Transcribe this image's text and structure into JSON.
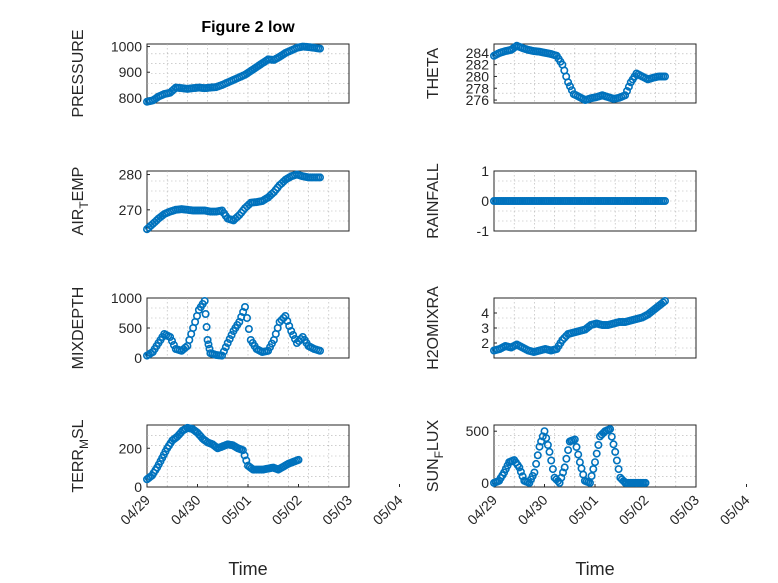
{
  "chart_data": [
    {
      "type": "scatter",
      "title": "Figure 2 low",
      "ylabel": "PRESSURE",
      "xlabel": "",
      "xlim": [
        0,
        3.0
      ],
      "ylim": [
        780,
        1010
      ],
      "yticks": [
        800,
        900,
        1000
      ],
      "xticks": [],
      "marker_color": "#0072BD",
      "x": [
        0.0,
        0.1,
        0.2,
        0.3,
        0.4,
        0.5,
        0.6,
        0.7,
        0.8,
        0.9,
        1.0,
        1.1,
        1.2,
        1.3,
        1.4,
        1.5,
        1.6,
        1.7,
        1.8,
        1.9,
        2.0,
        2.1,
        2.2,
        2.3,
        2.4,
        2.5,
        2.6,
        2.7,
        2.8,
        2.9,
        3.0
      ],
      "y": [
        785,
        790,
        805,
        815,
        820,
        840,
        838,
        835,
        838,
        840,
        838,
        840,
        842,
        850,
        860,
        870,
        880,
        890,
        905,
        920,
        935,
        950,
        948,
        960,
        975,
        985,
        995,
        1000,
        998,
        995,
        992
      ]
    },
    {
      "type": "scatter",
      "title": "",
      "ylabel": "THETA",
      "xlabel": "",
      "xlim": [
        0,
        3.0
      ],
      "ylim": [
        275.5,
        285.5
      ],
      "yticks": [
        276,
        278,
        280,
        282,
        284
      ],
      "xticks": [],
      "marker_color": "#0072BD",
      "x": [
        0.0,
        0.1,
        0.2,
        0.3,
        0.4,
        0.5,
        0.6,
        0.7,
        0.8,
        0.9,
        1.0,
        1.1,
        1.2,
        1.3,
        1.4,
        1.5,
        1.6,
        1.7,
        1.8,
        1.9,
        2.0,
        2.1,
        2.2,
        2.3,
        2.4,
        2.5,
        2.6,
        2.7,
        2.8,
        2.9,
        3.0
      ],
      "y": [
        283.5,
        284,
        284.3,
        284.5,
        285.2,
        284.8,
        284.5,
        284.3,
        284.2,
        284,
        283.8,
        283.5,
        282,
        279,
        277,
        276.5,
        276,
        276.3,
        276.5,
        276.8,
        276.5,
        276.2,
        276.4,
        276.8,
        279,
        280.5,
        280,
        279.5,
        279.8,
        280,
        280
      ]
    },
    {
      "type": "scatter",
      "title": "",
      "ylabel": "AIR_TEMP",
      "xlabel": "",
      "xlim": [
        0,
        3.0
      ],
      "ylim": [
        264,
        281
      ],
      "yticks": [
        270,
        280
      ],
      "xticks": [],
      "marker_color": "#0072BD",
      "x": [
        0.0,
        0.1,
        0.2,
        0.3,
        0.4,
        0.5,
        0.6,
        0.7,
        0.8,
        0.9,
        1.0,
        1.1,
        1.2,
        1.3,
        1.4,
        1.5,
        1.6,
        1.7,
        1.8,
        1.9,
        2.0,
        2.1,
        2.2,
        2.3,
        2.4,
        2.5,
        2.6,
        2.7,
        2.8,
        2.9,
        3.0
      ],
      "y": [
        264.5,
        266,
        267.5,
        268.8,
        269.5,
        270,
        270.2,
        270,
        269.8,
        269.8,
        269.8,
        269.5,
        269.5,
        269.8,
        267.5,
        267,
        268.5,
        270.5,
        272,
        272.2,
        272.5,
        273.5,
        275,
        277,
        278.5,
        279.5,
        280,
        279.5,
        279.2,
        279.2,
        279.2
      ]
    },
    {
      "type": "scatter",
      "title": "",
      "ylabel": "RAINFALL",
      "xlabel": "",
      "xlim": [
        0,
        3.0
      ],
      "ylim": [
        -1,
        1
      ],
      "yticks": [
        -1,
        0,
        1
      ],
      "xticks": [],
      "marker_color": "#0072BD",
      "x": [
        0.0,
        0.1,
        0.2,
        0.3,
        0.4,
        0.5,
        0.6,
        0.7,
        0.8,
        0.9,
        1.0,
        1.1,
        1.2,
        1.3,
        1.4,
        1.5,
        1.6,
        1.7,
        1.8,
        1.9,
        2.0,
        2.1,
        2.2,
        2.3,
        2.4,
        2.5,
        2.6,
        2.7,
        2.8,
        2.9,
        3.0
      ],
      "y": [
        0,
        0,
        0,
        0,
        0,
        0,
        0,
        0,
        0,
        0,
        0,
        0,
        0,
        0,
        0,
        0,
        0,
        0,
        0,
        0,
        0,
        0,
        0,
        0,
        0,
        0,
        0,
        0,
        0,
        0,
        0
      ]
    },
    {
      "type": "scatter",
      "title": "",
      "ylabel": "MIXDEPTH",
      "xlabel": "",
      "xlim": [
        0,
        3.0
      ],
      "ylim": [
        0,
        1000
      ],
      "yticks": [
        0,
        500,
        1000
      ],
      "xticks": [],
      "marker_color": "#0072BD",
      "x": [
        0.0,
        0.1,
        0.2,
        0.3,
        0.4,
        0.5,
        0.6,
        0.7,
        0.8,
        0.9,
        1.0,
        1.05,
        1.1,
        1.2,
        1.3,
        1.4,
        1.5,
        1.6,
        1.7,
        1.8,
        1.9,
        2.0,
        2.1,
        2.2,
        2.3,
        2.4,
        2.5,
        2.6,
        2.7,
        2.8,
        2.9,
        3.0
      ],
      "y": [
        40,
        100,
        250,
        400,
        350,
        150,
        120,
        200,
        500,
        800,
        950,
        300,
        80,
        50,
        40,
        250,
        450,
        600,
        850,
        300,
        150,
        100,
        120,
        300,
        600,
        700,
        450,
        250,
        350,
        200,
        150,
        120
      ]
    },
    {
      "type": "scatter",
      "title": "",
      "ylabel": "H2OMIXRA",
      "xlabel": "",
      "xlim": [
        0,
        3.0
      ],
      "ylim": [
        1,
        5
      ],
      "yticks": [
        2,
        3,
        4
      ],
      "xticks": [],
      "marker_color": "#0072BD",
      "x": [
        0.0,
        0.1,
        0.2,
        0.3,
        0.4,
        0.5,
        0.6,
        0.7,
        0.8,
        0.9,
        1.0,
        1.1,
        1.2,
        1.3,
        1.4,
        1.5,
        1.6,
        1.7,
        1.8,
        1.9,
        2.0,
        2.1,
        2.2,
        2.3,
        2.4,
        2.5,
        2.6,
        2.7,
        2.8,
        2.9,
        3.0
      ],
      "y": [
        1.5,
        1.6,
        1.8,
        1.7,
        1.9,
        1.7,
        1.5,
        1.4,
        1.5,
        1.6,
        1.5,
        1.6,
        2.2,
        2.6,
        2.7,
        2.8,
        2.9,
        3.2,
        3.3,
        3.2,
        3.2,
        3.3,
        3.4,
        3.4,
        3.5,
        3.6,
        3.7,
        3.9,
        4.2,
        4.5,
        4.8
      ]
    },
    {
      "type": "scatter",
      "title": "",
      "ylabel": "TERR_MSL",
      "xlabel": "Time",
      "xlim": [
        0,
        4
      ],
      "ylim": [
        0,
        320
      ],
      "yticks": [
        0,
        200
      ],
      "xticks": [
        "04/29",
        "04/30",
        "05/01",
        "05/02",
        "05/03",
        "05/04"
      ],
      "marker_color": "#0072BD",
      "x": [
        0.0,
        0.1,
        0.2,
        0.3,
        0.4,
        0.5,
        0.6,
        0.7,
        0.8,
        0.9,
        1.0,
        1.1,
        1.2,
        1.3,
        1.4,
        1.5,
        1.6,
        1.7,
        1.8,
        1.9,
        2.0,
        2.1,
        2.2,
        2.3,
        2.4,
        2.5,
        2.6,
        2.7,
        2.8,
        2.9,
        3.0
      ],
      "y": [
        40,
        60,
        100,
        150,
        200,
        240,
        260,
        290,
        305,
        300,
        280,
        250,
        230,
        220,
        200,
        210,
        220,
        215,
        200,
        190,
        110,
        90,
        90,
        90,
        95,
        100,
        90,
        105,
        120,
        130,
        140
      ]
    },
    {
      "type": "scatter",
      "title": "",
      "ylabel": "SUN_FLUX",
      "xlabel": "Time",
      "xlim": [
        0,
        4
      ],
      "ylim": [
        -40,
        560
      ],
      "yticks": [
        0,
        500
      ],
      "xticks": [
        "04/29",
        "04/30",
        "05/01",
        "05/02",
        "05/03",
        "05/04"
      ],
      "marker_color": "#0072BD",
      "x": [
        0.0,
        0.1,
        0.2,
        0.3,
        0.4,
        0.5,
        0.6,
        0.7,
        0.8,
        0.9,
        1.0,
        1.1,
        1.2,
        1.3,
        1.4,
        1.5,
        1.6,
        1.7,
        1.8,
        1.9,
        2.0,
        2.1,
        2.2,
        2.3,
        2.4,
        2.5,
        2.6,
        2.7,
        2.8,
        2.9,
        3.0
      ],
      "y": [
        0,
        20,
        100,
        200,
        220,
        150,
        20,
        0,
        100,
        350,
        500,
        300,
        50,
        0,
        150,
        400,
        420,
        200,
        20,
        0,
        200,
        450,
        500,
        520,
        300,
        50,
        0,
        0,
        0,
        0,
        0
      ]
    }
  ]
}
